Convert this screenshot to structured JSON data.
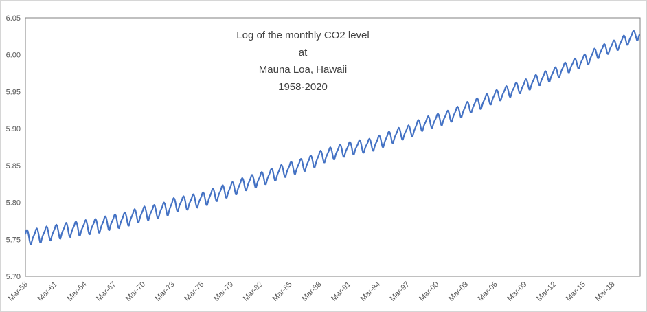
{
  "chart_data": {
    "type": "line",
    "title": "Log of the monthly CO2 level\nat\nMauna Loa, Hawaii\n1958-2020",
    "xlabel": "",
    "ylabel": "",
    "ylim": [
      5.7,
      6.05
    ],
    "y_ticks": [
      5.7,
      5.75,
      5.8,
      5.85,
      5.9,
      5.95,
      6.0,
      6.05
    ],
    "y_tick_labels": [
      "5.70",
      "5.75",
      "5.80",
      "5.85",
      "5.90",
      "5.95",
      "6.00",
      "6.05"
    ],
    "x_tick_labels": [
      "Mar-58",
      "Mar-61",
      "Mar-64",
      "Mar-67",
      "Mar-70",
      "Mar-73",
      "Mar-76",
      "Mar-79",
      "Mar-82",
      "Mar-85",
      "Mar-88",
      "Mar-91",
      "Mar-94",
      "Mar-97",
      "Mar-00",
      "Mar-03",
      "Mar-06",
      "Mar-09",
      "Mar-12",
      "Mar-15",
      "Mar-18"
    ],
    "x_tick_interval_years": 3,
    "x_start": "Mar-1958",
    "x_end": "Dec-2020",
    "grid": false,
    "legend": false,
    "line_color": "#4472C4",
    "axis_color": "#808080",
    "tick_label_color": "#595959",
    "series": [
      {
        "name": "log of monthly CO2 level, Mauna Loa",
        "transform": "natural_log_of_ppm",
        "start_year": 1958,
        "start_month": 3,
        "end_year": 2020,
        "end_month": 12,
        "annual_mean_ppm": [
          315.34,
          315.97,
          316.91,
          317.64,
          318.45,
          318.99,
          319.62,
          320.04,
          321.37,
          322.18,
          323.05,
          324.62,
          325.68,
          326.32,
          327.46,
          329.68,
          330.19,
          331.12,
          332.03,
          333.84,
          335.41,
          336.84,
          338.76,
          340.12,
          341.48,
          343.15,
          344.87,
          346.35,
          347.61,
          349.31,
          351.69,
          353.2,
          354.45,
          355.7,
          356.54,
          357.21,
          358.96,
          360.97,
          362.74,
          363.88,
          366.84,
          368.54,
          369.71,
          371.32,
          373.45,
          375.98,
          377.7,
          379.98,
          382.09,
          384.02,
          385.83,
          387.64,
          390.1,
          391.85,
          394.06,
          396.74,
          398.81,
          401.01,
          404.41,
          406.76,
          408.72,
          411.66,
          414.24
        ],
        "seasonal_offset_ppm": [
          -0.1,
          0.6,
          1.4,
          2.6,
          3.0,
          2.3,
          0.7,
          -1.5,
          -3.2,
          -3.4,
          -2.1,
          -0.9
        ],
        "approx_log_start": 5.755,
        "approx_log_end": 6.02,
        "approx_log_peak": 6.03
      }
    ]
  }
}
